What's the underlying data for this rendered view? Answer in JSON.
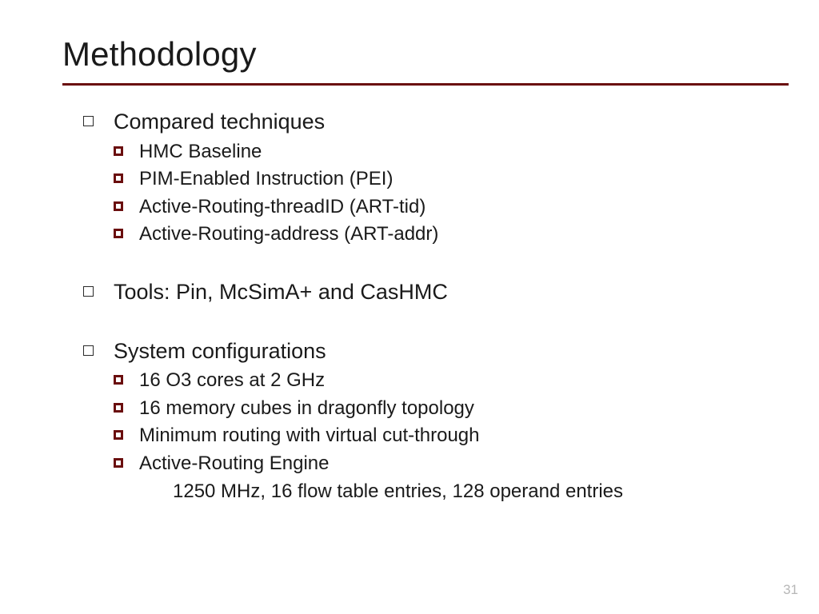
{
  "title": "Methodology",
  "rule_color": "#6a0e0e",
  "sub_bullet_border_color": "#6a0e0e",
  "page_number": "31",
  "sections": {
    "compared": {
      "heading": "Compared techniques",
      "items": [
        "HMC Baseline",
        "PIM-Enabled Instruction (PEI)",
        "Active-Routing-threadID (ART-tid)",
        "Active-Routing-address (ART-addr)"
      ]
    },
    "tools": {
      "heading": "Tools: Pin, McSimA+ and CasHMC"
    },
    "sysconfig": {
      "heading": "System configurations",
      "items": [
        "16 O3 cores at 2 GHz",
        "16 memory cubes in dragonfly topology",
        "Minimum routing with virtual cut-through",
        "Active-Routing Engine"
      ],
      "subdetail": "1250 MHz, 16 flow table entries, 128 operand entries"
    }
  }
}
